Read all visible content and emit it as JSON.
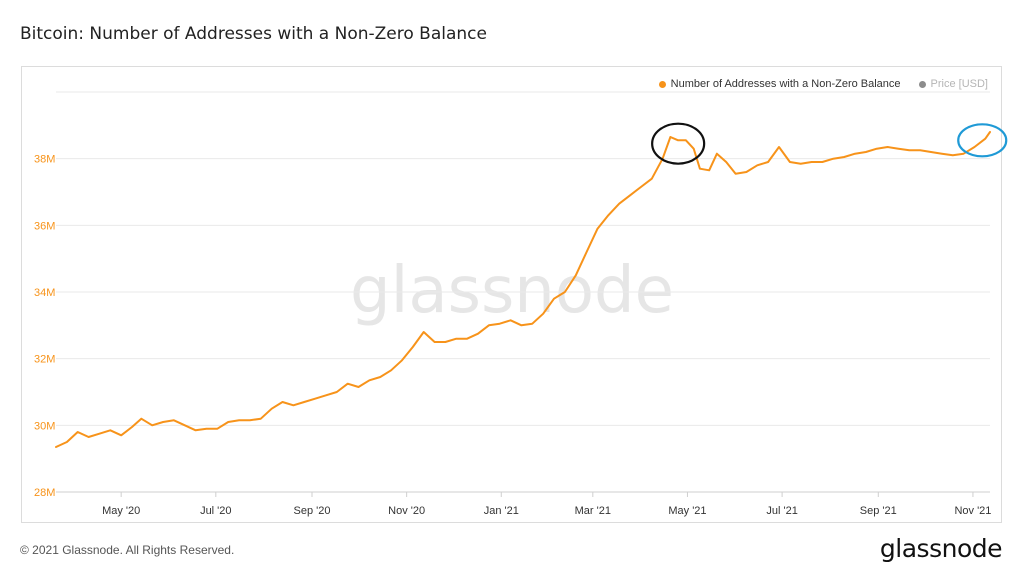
{
  "title": "Bitcoin: Number of Addresses with a Non-Zero Balance",
  "footer": "© 2021 Glassnode. All Rights Reserved.",
  "brand": "glassnode",
  "watermark": "glassnode",
  "legend": [
    {
      "label": "Number of Addresses with a Non-Zero Balance",
      "color": "#f7931a"
    },
    {
      "label": "Price [USD]",
      "color": "#8c8c8c"
    }
  ],
  "colors": {
    "series": "#f7931a",
    "axis_text": "#f7931a",
    "grid": "#e9e9e9",
    "annotation_black": "#111111",
    "annotation_blue": "#1f9ad6"
  },
  "chart_data": {
    "type": "line",
    "title": "Bitcoin: Number of Addresses with a Non-Zero Balance",
    "xlabel": "",
    "ylabel": "",
    "ylim": [
      28000000,
      40000000
    ],
    "xlim": [
      "2020-03-20",
      "2021-11-12"
    ],
    "y_ticks": [
      28000000,
      30000000,
      32000000,
      34000000,
      36000000,
      38000000
    ],
    "y_tick_labels": [
      "28M",
      "30M",
      "32M",
      "34M",
      "36M",
      "38M"
    ],
    "x_ticks": [
      "2020-05-01",
      "2020-07-01",
      "2020-09-01",
      "2020-11-01",
      "2021-01-01",
      "2021-03-01",
      "2021-05-01",
      "2021-07-01",
      "2021-09-01",
      "2021-11-01"
    ],
    "x_tick_labels": [
      "May '20",
      "Jul '20",
      "Sep '20",
      "Nov '20",
      "Jan '21",
      "Mar '21",
      "May '21",
      "Jul '21",
      "Sep '21",
      "Nov '21"
    ],
    "grid": true,
    "legend_position": "top-right",
    "series": [
      {
        "name": "Number of Addresses with a Non-Zero Balance",
        "color": "#f7931a",
        "points": [
          [
            "2020-03-20",
            29350000
          ],
          [
            "2020-03-27",
            29500000
          ],
          [
            "2020-04-03",
            29800000
          ],
          [
            "2020-04-10",
            29650000
          ],
          [
            "2020-04-17",
            29750000
          ],
          [
            "2020-04-24",
            29850000
          ],
          [
            "2020-05-01",
            29700000
          ],
          [
            "2020-05-08",
            29950000
          ],
          [
            "2020-05-14",
            30200000
          ],
          [
            "2020-05-21",
            30000000
          ],
          [
            "2020-05-28",
            30100000
          ],
          [
            "2020-06-04",
            30150000
          ],
          [
            "2020-06-11",
            30000000
          ],
          [
            "2020-06-18",
            29850000
          ],
          [
            "2020-06-25",
            29900000
          ],
          [
            "2020-07-02",
            29900000
          ],
          [
            "2020-07-09",
            30100000
          ],
          [
            "2020-07-16",
            30150000
          ],
          [
            "2020-07-23",
            30150000
          ],
          [
            "2020-07-30",
            30200000
          ],
          [
            "2020-08-06",
            30500000
          ],
          [
            "2020-08-13",
            30700000
          ],
          [
            "2020-08-20",
            30600000
          ],
          [
            "2020-08-27",
            30700000
          ],
          [
            "2020-09-03",
            30800000
          ],
          [
            "2020-09-10",
            30900000
          ],
          [
            "2020-09-17",
            31000000
          ],
          [
            "2020-09-24",
            31250000
          ],
          [
            "2020-10-01",
            31150000
          ],
          [
            "2020-10-08",
            31350000
          ],
          [
            "2020-10-15",
            31450000
          ],
          [
            "2020-10-22",
            31650000
          ],
          [
            "2020-10-29",
            31950000
          ],
          [
            "2020-11-05",
            32350000
          ],
          [
            "2020-11-12",
            32800000
          ],
          [
            "2020-11-19",
            32500000
          ],
          [
            "2020-11-26",
            32500000
          ],
          [
            "2020-12-03",
            32600000
          ],
          [
            "2020-12-10",
            32600000
          ],
          [
            "2020-12-17",
            32750000
          ],
          [
            "2020-12-24",
            33000000
          ],
          [
            "2020-12-31",
            33050000
          ],
          [
            "2021-01-07",
            33150000
          ],
          [
            "2021-01-14",
            33000000
          ],
          [
            "2021-01-21",
            33050000
          ],
          [
            "2021-01-28",
            33350000
          ],
          [
            "2021-02-04",
            33800000
          ],
          [
            "2021-02-11",
            34000000
          ],
          [
            "2021-02-18",
            34500000
          ],
          [
            "2021-02-25",
            35200000
          ],
          [
            "2021-03-04",
            35900000
          ],
          [
            "2021-03-11",
            36300000
          ],
          [
            "2021-03-18",
            36650000
          ],
          [
            "2021-03-25",
            36900000
          ],
          [
            "2021-04-01",
            37150000
          ],
          [
            "2021-04-08",
            37400000
          ],
          [
            "2021-04-15",
            38000000
          ],
          [
            "2021-04-20",
            38650000
          ],
          [
            "2021-04-25",
            38550000
          ],
          [
            "2021-04-30",
            38550000
          ],
          [
            "2021-05-05",
            38300000
          ],
          [
            "2021-05-09",
            37700000
          ],
          [
            "2021-05-15",
            37650000
          ],
          [
            "2021-05-20",
            38150000
          ],
          [
            "2021-05-26",
            37900000
          ],
          [
            "2021-06-01",
            37550000
          ],
          [
            "2021-06-08",
            37600000
          ],
          [
            "2021-06-15",
            37800000
          ],
          [
            "2021-06-22",
            37900000
          ],
          [
            "2021-06-29",
            38350000
          ],
          [
            "2021-07-06",
            37900000
          ],
          [
            "2021-07-13",
            37850000
          ],
          [
            "2021-07-20",
            37900000
          ],
          [
            "2021-07-27",
            37900000
          ],
          [
            "2021-08-03",
            38000000
          ],
          [
            "2021-08-10",
            38050000
          ],
          [
            "2021-08-17",
            38150000
          ],
          [
            "2021-08-24",
            38200000
          ],
          [
            "2021-08-31",
            38300000
          ],
          [
            "2021-09-07",
            38350000
          ],
          [
            "2021-09-14",
            38300000
          ],
          [
            "2021-09-21",
            38250000
          ],
          [
            "2021-09-28",
            38250000
          ],
          [
            "2021-10-05",
            38200000
          ],
          [
            "2021-10-12",
            38150000
          ],
          [
            "2021-10-19",
            38100000
          ],
          [
            "2021-10-26",
            38150000
          ],
          [
            "2021-11-02",
            38350000
          ],
          [
            "2021-11-09",
            38600000
          ],
          [
            "2021-11-12",
            38800000
          ]
        ]
      }
    ],
    "annotations": [
      {
        "shape": "ellipse",
        "color": "#111111",
        "at": [
          "2021-04-25",
          38450000
        ]
      },
      {
        "shape": "ellipse",
        "color": "#1f9ad6",
        "at": [
          "2021-11-07",
          38550000
        ]
      }
    ]
  }
}
